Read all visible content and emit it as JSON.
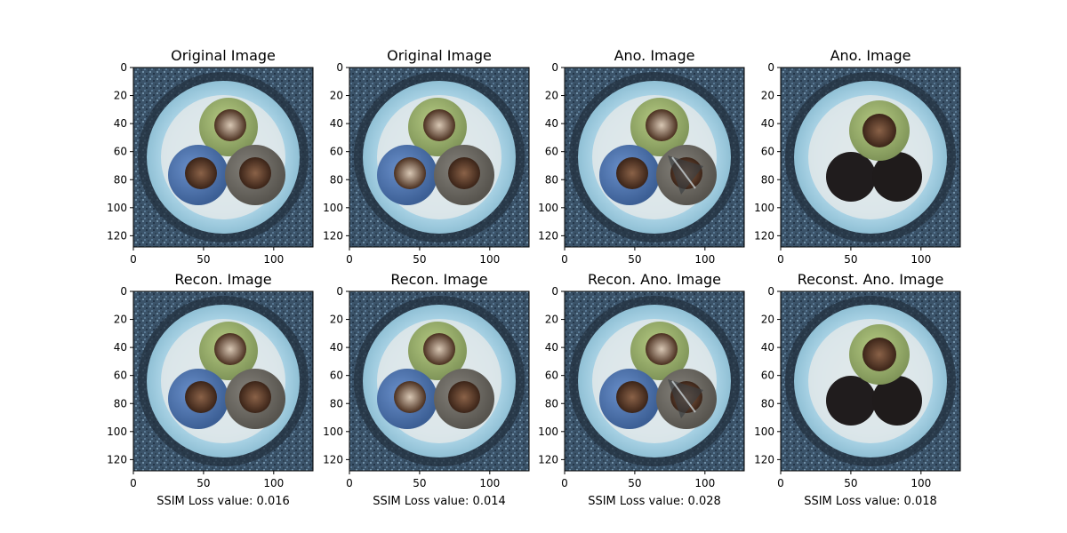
{
  "figure": {
    "panels": [
      {
        "title": "Original Image",
        "caption": "",
        "variant": "normal-a"
      },
      {
        "title": "Original Image",
        "caption": "",
        "variant": "normal-b"
      },
      {
        "title": "Ano. Image",
        "caption": "",
        "variant": "cut-cable"
      },
      {
        "title": "Ano. Image",
        "caption": "",
        "variant": "missing-cables"
      },
      {
        "title": "Recon. Image",
        "caption": "SSIM Loss value: 0.016",
        "variant": "normal-a"
      },
      {
        "title": "Recon. Image",
        "caption": "SSIM Loss value: 0.014",
        "variant": "normal-b"
      },
      {
        "title": "Recon. Ano. Image",
        "caption": "SSIM Loss value: 0.028",
        "variant": "cut-cable"
      },
      {
        "title": "Reconst. Ano. Image",
        "caption": "SSIM Loss value: 0.018",
        "variant": "missing-cables"
      }
    ],
    "axis": {
      "x_ticks": [
        0,
        50,
        100
      ],
      "y_ticks": [
        0,
        20,
        40,
        60,
        80,
        100,
        120
      ],
      "range": [
        0,
        128
      ]
    },
    "colors": {
      "background": "#ffffff",
      "outer_texture": "#3e5b73",
      "ring": "#a9d7e6",
      "cable_green": "#9db86f",
      "cable_blue": "#4f78b8",
      "cable_gray": "#6d6a63",
      "copper": "#5a3a25",
      "void": "#1f1c1c"
    }
  }
}
